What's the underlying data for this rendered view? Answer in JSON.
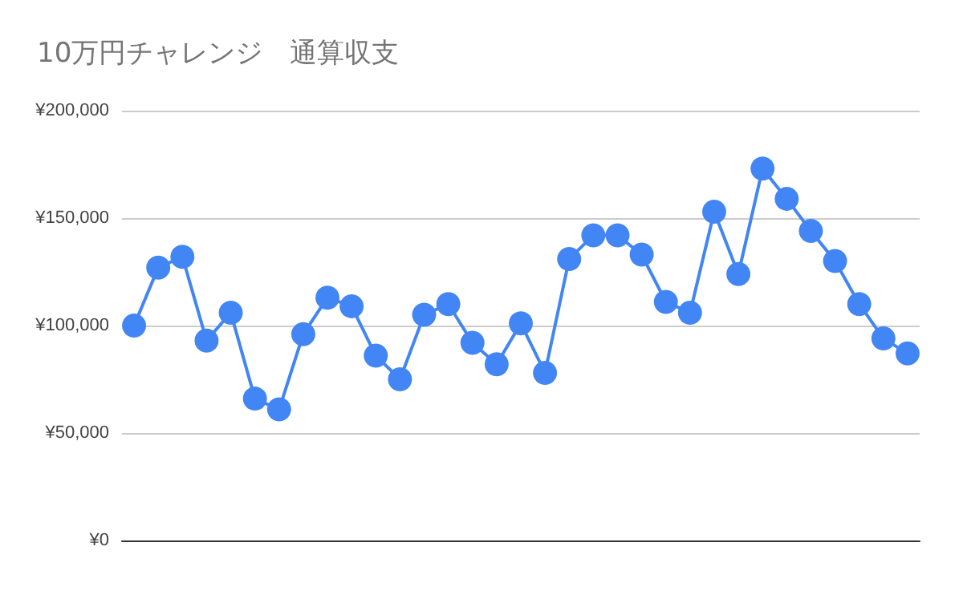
{
  "chart_data": {
    "type": "line",
    "title": "10万円チャレンジ　通算収支",
    "categories": [
      null,
      null,
      null,
      null,
      null,
      null,
      null,
      null,
      null,
      null,
      null,
      null,
      null,
      null,
      null,
      null,
      null,
      null,
      null,
      null,
      null,
      null,
      null,
      null,
      null,
      null,
      null,
      null,
      null,
      null,
      null,
      null,
      null
    ],
    "series": [
      {
        "color": "#4285f4",
        "values": [
          100000,
          127000,
          132000,
          93000,
          106000,
          66000,
          61000,
          96000,
          113000,
          109000,
          86000,
          75000,
          105000,
          110000,
          92000,
          82000,
          101000,
          78000,
          131000,
          142000,
          142000,
          133000,
          111000,
          106000,
          153000,
          124000,
          173000,
          159000,
          144000,
          130000,
          110000,
          94000,
          87000
        ]
      }
    ],
    "ylim": [
      0,
      200000
    ],
    "yticks": [
      {
        "value": 0,
        "label": "¥0"
      },
      {
        "value": 50000,
        "label": "¥50,000"
      },
      {
        "value": 100000,
        "label": "¥100,000"
      },
      {
        "value": 150000,
        "label": "¥150,000"
      },
      {
        "value": 200000,
        "label": "¥200,000"
      }
    ],
    "grid": "y",
    "marker": "circle",
    "line_style": "solid"
  }
}
